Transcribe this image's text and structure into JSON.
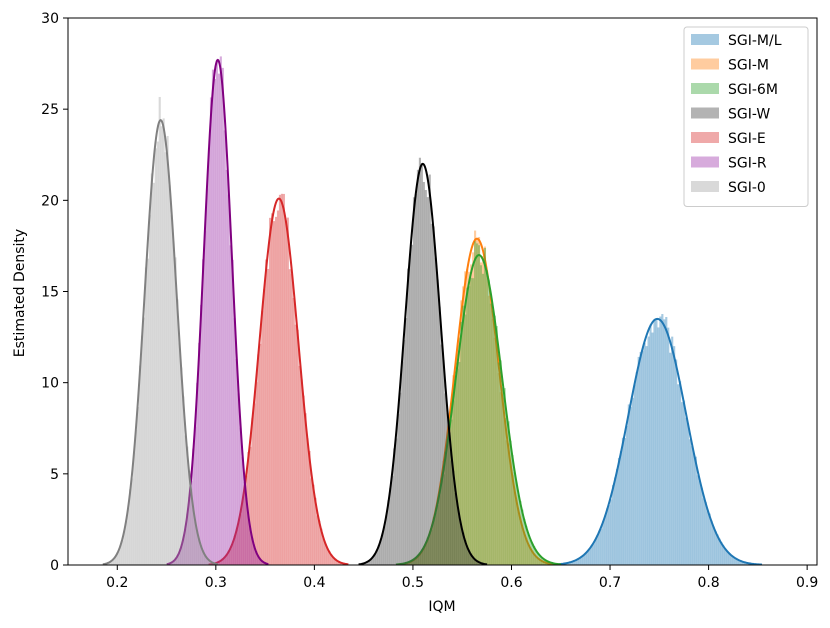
{
  "chart_data": {
    "type": "area",
    "xlabel": "IQM",
    "ylabel": "Estimated Density",
    "xlim": [
      0.15,
      0.91
    ],
    "ylim": [
      0,
      30
    ],
    "xticks": [
      "0.2",
      "0.3",
      "0.4",
      "0.5",
      "0.6",
      "0.7",
      "0.8",
      "0.9"
    ],
    "yticks": [
      "0",
      "5",
      "10",
      "15",
      "20",
      "25",
      "30"
    ],
    "grid": false,
    "legend_position": "top-right",
    "series": [
      {
        "name": "SGI-M/L",
        "fill": "#1f77b4",
        "line": "#1f77b4",
        "mean": 0.748,
        "sd": 0.0295,
        "peak": 13.5
      },
      {
        "name": "SGI-M",
        "fill": "#ff7f0e",
        "line": "#ff7f0e",
        "mean": 0.565,
        "sd": 0.0222,
        "peak": 17.9
      },
      {
        "name": "SGI-6M",
        "fill": "#2ca02c",
        "line": "#2ca02c",
        "mean": 0.567,
        "sd": 0.0234,
        "peak": 17.0
      },
      {
        "name": "SGI-W",
        "fill": "#404040",
        "line": "#000000",
        "mean": 0.51,
        "sd": 0.0181,
        "peak": 22.0
      },
      {
        "name": "SGI-E",
        "fill": "#d62728",
        "line": "#d62728",
        "mean": 0.364,
        "sd": 0.0198,
        "peak": 20.1
      },
      {
        "name": "SGI-R",
        "fill": "#9467bd",
        "fill_override": "#9b2da8",
        "line": "#800080",
        "mean": 0.302,
        "sd": 0.0144,
        "peak": 27.7
      },
      {
        "name": "SGI-0",
        "fill": "#a0a0a0",
        "line": "#808080",
        "mean": 0.244,
        "sd": 0.0163,
        "peak": 24.4
      }
    ]
  }
}
